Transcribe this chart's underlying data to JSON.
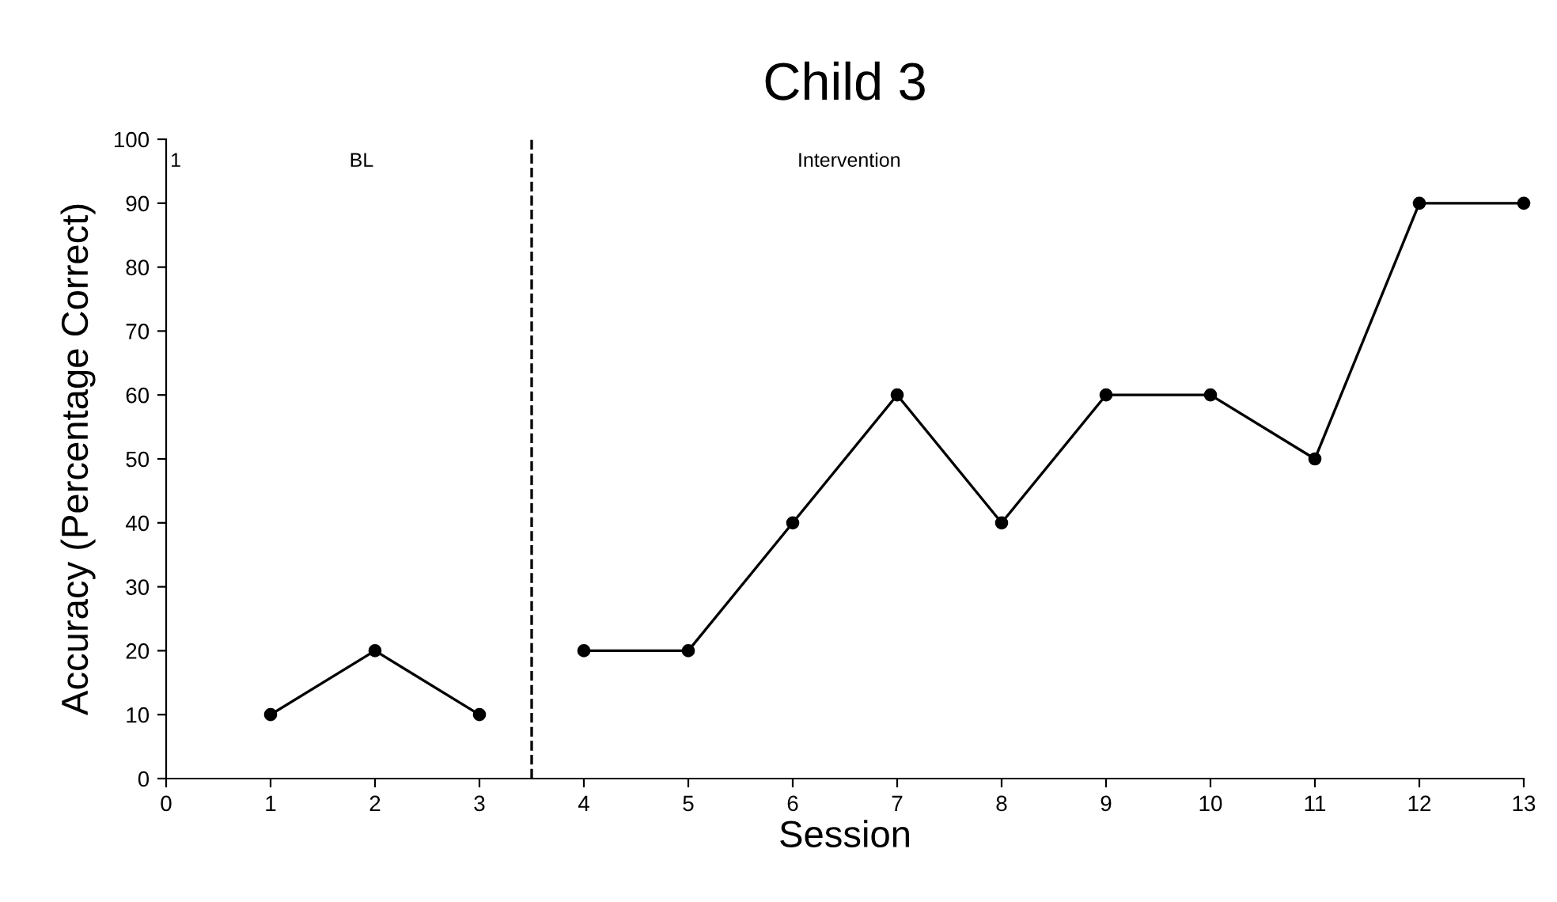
{
  "chart_data": {
    "type": "line",
    "title": "Child 3",
    "xlabel": "Session",
    "ylabel": "Accuracy (Percentage Correct)",
    "series": [
      {
        "color": "#000000",
        "x": [
          1,
          2,
          3
        ],
        "values": [
          10,
          20,
          10
        ]
      },
      {
        "color": "#000000",
        "x": [
          4,
          5,
          6,
          7,
          8,
          9,
          10,
          11,
          12,
          13
        ],
        "values": [
          20,
          20,
          40,
          60,
          40,
          60,
          60,
          50,
          90,
          90
        ]
      }
    ],
    "xlim": [
      0,
      13
    ],
    "xticks": [
      0,
      1,
      2,
      3,
      4,
      5,
      6,
      7,
      8,
      9,
      10,
      11,
      12,
      13
    ],
    "ylim": [
      0,
      100
    ],
    "yticks": [
      0,
      10,
      20,
      30,
      40,
      50,
      60,
      70,
      80,
      90,
      100
    ],
    "ref_lines": [
      {
        "axis": "x",
        "value": 3.5,
        "color": "#000000",
        "line_style": "dashed"
      }
    ],
    "annotations": [
      "1",
      "BL",
      "Intervention"
    ],
    "marker": "circle",
    "line_style": "solid",
    "grid": false,
    "legend": false
  }
}
